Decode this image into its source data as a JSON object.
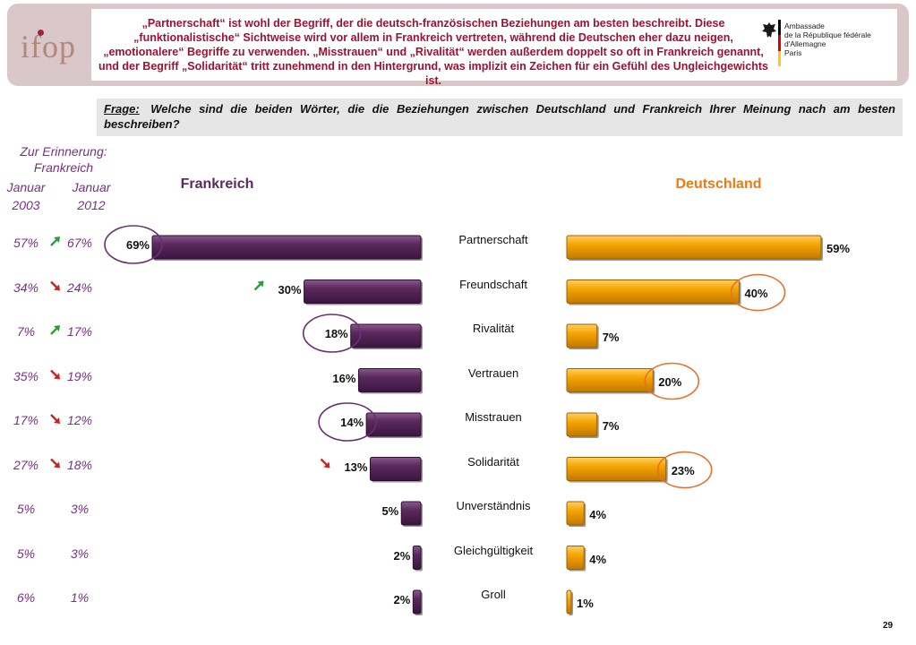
{
  "header": {
    "logo_text": "ifop",
    "headline": "„Partnerschaft“ ist wohl der Begriff, der die deutsch-französischen Beziehungen am besten beschreibt. Diese „funktionalistische“ Sichtweise wird vor allem in Frankreich vertreten, während die Deutschen eher dazu neigen, „emotionalere“ Begriffe zu verwenden. „Misstrauen“ und „Rivalität“ werden außerdem doppelt so oft in Frankreich genannt, und der Begriff „Solidarität“ tritt zunehmend in den Hintergrund, was implizit ein Zeichen für ein Gefühl des Ungleichgewichts ist.",
    "embassy_line1": "Ambassade",
    "embassy_line2": "de la République fédérale d'Allemagne",
    "embassy_line3": "Paris"
  },
  "question": {
    "label": "Frage:",
    "text": "Welche sind die beiden Wörter, die die Beziehungen zwischen Deutschland und Frankreich Ihrer Meinung nach am besten beschreiben?"
  },
  "reminder": {
    "title": "Zur Erinnerung: Frankreich",
    "col1_line1": "Januar",
    "col1_line2": "2003",
    "col2_line1": "Januar",
    "col2_line2": "2012"
  },
  "colors": {
    "frankreich": "#5b2a5e",
    "deutschland": "#f5a300",
    "reminder_text": "#7a2f84",
    "trend_up": "#2e9e3a",
    "trend_down": "#d02020",
    "circle_purple": "#6b2f73",
    "circle_orange": "#e8702a"
  },
  "chart_data": {
    "type": "bar",
    "categories": [
      "Partnerschaft",
      "Freundschaft",
      "Rivalität",
      "Vertrauen",
      "Misstrauen",
      "Solidarität",
      "Unverständnis",
      "Gleichgültigkeit",
      "Groll"
    ],
    "series": [
      {
        "name": "Frankreich",
        "values": [
          69,
          30,
          18,
          16,
          14,
          13,
          5,
          2,
          2
        ],
        "labels": [
          "69%",
          "30%",
          "18%",
          "16%",
          "14%",
          "13%",
          "5%",
          "2%",
          "2%"
        ]
      },
      {
        "name": "Deutschland",
        "values": [
          59,
          40,
          7,
          20,
          7,
          23,
          4,
          4,
          1
        ],
        "labels": [
          "59%",
          "40%",
          "7%",
          "20%",
          "7%",
          "23%",
          "4%",
          "4%",
          "1%"
        ]
      }
    ],
    "reminder_2003": [
      "57%",
      "34%",
      "7%",
      "35%",
      "17%",
      "27%",
      "5%",
      "5%",
      "6%"
    ],
    "reminder_2012": [
      "67%",
      "24%",
      "17%",
      "19%",
      "12%",
      "18%",
      "3%",
      "3%",
      "1%"
    ],
    "reminder_trend": [
      "up",
      "down",
      "up",
      "down",
      "down",
      "down",
      "none",
      "none",
      "none"
    ],
    "frankreich_trend": [
      "none",
      "up",
      "none",
      "none",
      "none",
      "down",
      "none",
      "none",
      "none"
    ],
    "frankreich_circled": [
      true,
      false,
      true,
      false,
      true,
      false,
      false,
      false,
      false
    ],
    "deutschland_circled": [
      false,
      true,
      false,
      true,
      false,
      true,
      false,
      false,
      false
    ]
  },
  "page_number": "29"
}
